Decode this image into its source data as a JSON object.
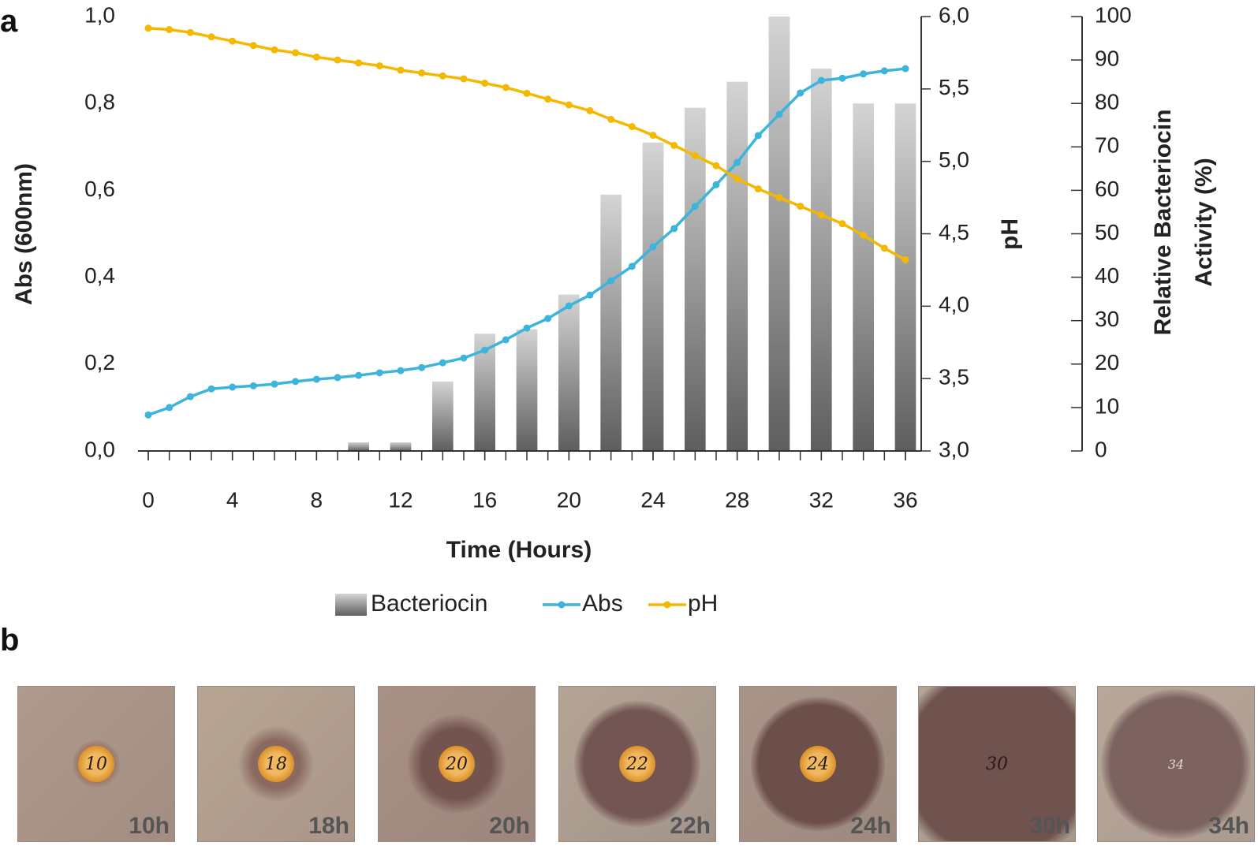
{
  "chart_data": {
    "type": "combo",
    "panel_label": "a",
    "x_label": "Time (Hours)",
    "y_label": "Abs (600nm)",
    "y2_label": "pH",
    "y3_label": [
      "Relative Bacteriocin",
      "Activity (%)"
    ],
    "x": [
      0,
      1,
      2,
      3,
      4,
      5,
      6,
      7,
      8,
      9,
      10,
      11,
      12,
      13,
      14,
      15,
      16,
      17,
      18,
      19,
      20,
      21,
      22,
      23,
      24,
      25,
      26,
      27,
      28,
      29,
      30,
      31,
      32,
      33,
      34,
      35,
      36
    ],
    "xlim": [
      0,
      36
    ],
    "xticks": [
      0,
      4,
      8,
      12,
      16,
      20,
      24,
      28,
      32,
      36
    ],
    "ylim": [
      0,
      1
    ],
    "yticks": [
      {
        "value": 0,
        "label": "0,0"
      },
      {
        "value": 0.2,
        "label": "0,2"
      },
      {
        "value": 0.4,
        "label": "0,4"
      },
      {
        "value": 0.6,
        "label": "0,6"
      },
      {
        "value": 0.8,
        "label": "0,8"
      },
      {
        "value": 1,
        "label": "1,0"
      }
    ],
    "y2lim": [
      3,
      6
    ],
    "y2ticks": [
      {
        "value": 3,
        "label": "3,0"
      },
      {
        "value": 3.5,
        "label": "3,5"
      },
      {
        "value": 4,
        "label": "4,0"
      },
      {
        "value": 4.5,
        "label": "4,5"
      },
      {
        "value": 5,
        "label": "5,0"
      },
      {
        "value": 5.5,
        "label": "5,5"
      },
      {
        "value": 6,
        "label": "6,0"
      }
    ],
    "y3lim": [
      0,
      100
    ],
    "y3ticks": [
      0,
      10,
      20,
      30,
      40,
      50,
      60,
      70,
      80,
      90,
      100
    ],
    "series": [
      {
        "name": "Bacteriocin",
        "type": "bar",
        "axis": "y3",
        "color": "#8a8a8a",
        "x": [
          0,
          2,
          4,
          6,
          8,
          10,
          12,
          14,
          16,
          18,
          20,
          22,
          24,
          26,
          28,
          30,
          32,
          34,
          36
        ],
        "values": [
          0,
          0,
          0,
          0,
          0,
          2,
          2,
          16,
          27,
          28,
          36,
          59,
          71,
          79,
          85,
          100,
          88,
          80,
          80
        ]
      },
      {
        "name": "Abs",
        "type": "line",
        "axis": "y",
        "color": "#3cb4dc",
        "values": [
          0.083,
          0.1,
          0.125,
          0.143,
          0.147,
          0.15,
          0.154,
          0.16,
          0.165,
          0.169,
          0.174,
          0.18,
          0.185,
          0.192,
          0.203,
          0.214,
          0.232,
          0.256,
          0.283,
          0.305,
          0.334,
          0.359,
          0.392,
          0.425,
          0.47,
          0.512,
          0.563,
          0.613,
          0.664,
          0.726,
          0.775,
          0.824,
          0.853,
          0.858,
          0.868,
          0.875,
          0.88
        ]
      },
      {
        "name": "pH",
        "type": "line",
        "axis": "y2",
        "color": "#f5b800",
        "values": [
          5.92,
          5.91,
          5.89,
          5.86,
          5.83,
          5.8,
          5.77,
          5.75,
          5.72,
          5.7,
          5.68,
          5.66,
          5.63,
          5.61,
          5.59,
          5.57,
          5.54,
          5.51,
          5.47,
          5.43,
          5.39,
          5.35,
          5.29,
          5.24,
          5.18,
          5.11,
          5.04,
          4.97,
          4.88,
          4.81,
          4.75,
          4.69,
          4.63,
          4.57,
          4.49,
          4.4,
          4.32
        ]
      }
    ]
  },
  "photos": {
    "panel_label": "b",
    "items": [
      {
        "label": "10h",
        "marking": "10"
      },
      {
        "label": "18h",
        "marking": "18"
      },
      {
        "label": "20h",
        "marking": "20"
      },
      {
        "label": "22h",
        "marking": "22"
      },
      {
        "label": "24h",
        "marking": "24"
      },
      {
        "label": "30h",
        "marking": "30"
      },
      {
        "label": "34h",
        "marking": "34"
      }
    ]
  }
}
